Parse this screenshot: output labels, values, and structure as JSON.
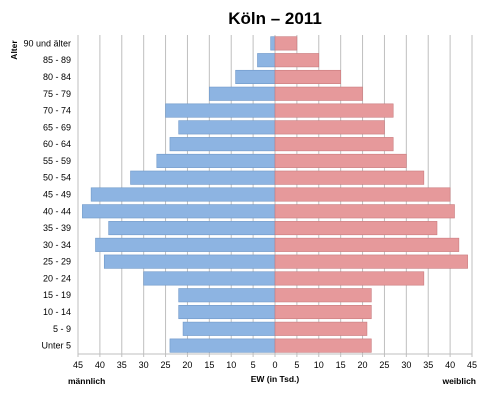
{
  "chart_data": {
    "type": "bar",
    "orientation": "horizontal",
    "title": "Köln – 2011",
    "ylabel": "Alter",
    "xlabel": "EW (in Tsd.)",
    "left_label": "männlich",
    "right_label": "weiblich",
    "categories": [
      "90 und älter",
      "85 - 89",
      "80 - 84",
      "75 - 79",
      "70 - 74",
      "65 - 69",
      "60 - 64",
      "55 - 59",
      "50 - 54",
      "45 - 49",
      "40 - 44",
      "35 - 39",
      "30 - 34",
      "25 - 29",
      "20 - 24",
      "15 - 19",
      "10 - 14",
      "5 - 9",
      "Unter 5"
    ],
    "xlim": [
      -45,
      45
    ],
    "x_ticks": [
      -45,
      -40,
      -35,
      -30,
      -25,
      -20,
      -15,
      -10,
      -5,
      0,
      5,
      10,
      15,
      20,
      25,
      30,
      35,
      40,
      45
    ],
    "x_tick_labels": [
      "45",
      "40",
      "35",
      "30",
      "25",
      "20",
      "15",
      "10",
      "5",
      "0",
      "5",
      "10",
      "15",
      "20",
      "25",
      "30",
      "35",
      "40",
      "45"
    ],
    "grid": true,
    "series": [
      {
        "name": "männlich",
        "color": "#8db4e2",
        "values": [
          1,
          4,
          9,
          15,
          25,
          22,
          24,
          27,
          33,
          42,
          44,
          38,
          41,
          39,
          30,
          22,
          22,
          21,
          24
        ]
      },
      {
        "name": "weiblich",
        "color": "#e6999b",
        "values": [
          5,
          10,
          15,
          20,
          27,
          25,
          27,
          30,
          34,
          40,
          41,
          37,
          42,
          44,
          34,
          22,
          22,
          21,
          22
        ]
      }
    ]
  }
}
